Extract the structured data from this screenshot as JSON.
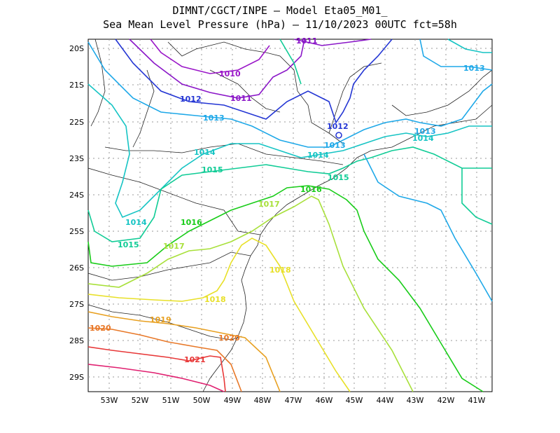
{
  "title": {
    "line1": "DIMNT/CGCT/INPE –  Model Eta05_M01_",
    "line2": "Sea Mean Level Pressure (hPa) – 11/10/2023 00UTC fct=58h"
  },
  "axes": {
    "lon_ticks": [
      "53W",
      "52W",
      "51W",
      "50W",
      "49W",
      "48W",
      "47W",
      "46W",
      "45W",
      "44W",
      "43W",
      "42W",
      "41W"
    ],
    "lat_ticks": [
      "20S",
      "21S",
      "22S",
      "23S",
      "24S",
      "25S",
      "26S",
      "27S",
      "28S",
      "29S"
    ]
  },
  "isobars": [
    {
      "value": "1010",
      "color": "#9a16c8"
    },
    {
      "value": "1011",
      "color": "#8a16c8"
    },
    {
      "value": "1012",
      "color": "#2436d4"
    },
    {
      "value": "1013",
      "color": "#1ea8e8"
    },
    {
      "value": "1014",
      "color": "#16c4c4"
    },
    {
      "value": "1015",
      "color": "#10cc96"
    },
    {
      "value": "1016",
      "color": "#18cc18"
    },
    {
      "value": "1017",
      "color": "#a8e03a"
    },
    {
      "value": "1018",
      "color": "#e8e028"
    },
    {
      "value": "1019",
      "color": "#e8a020"
    },
    {
      "value": "1020",
      "color": "#e87828"
    },
    {
      "value": "1021",
      "color": "#e83838"
    }
  ]
}
